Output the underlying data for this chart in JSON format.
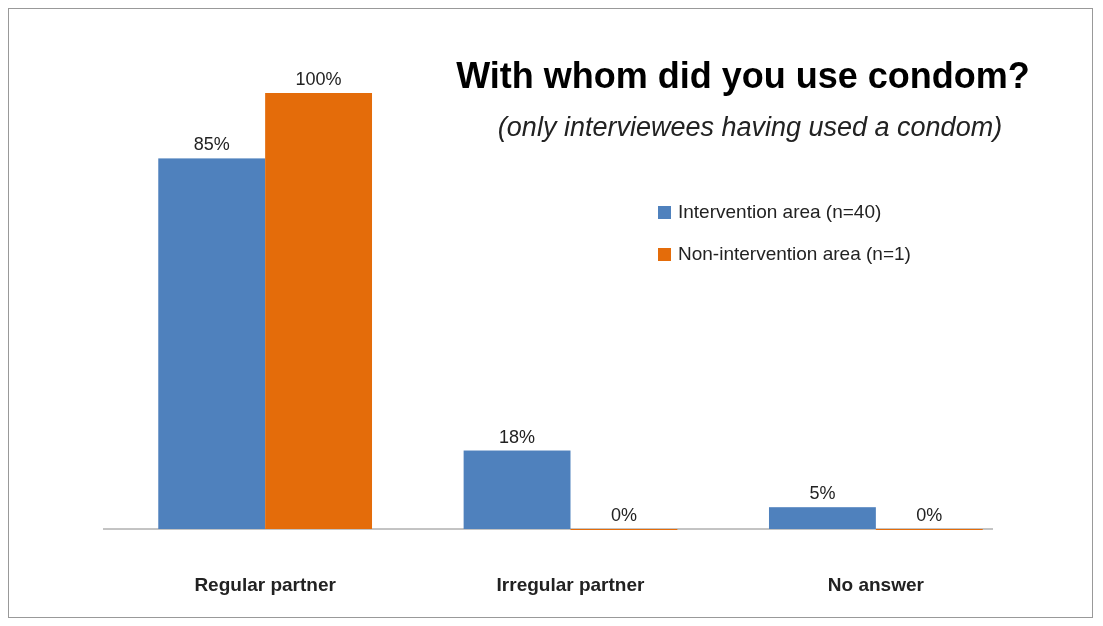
{
  "chart_data": {
    "type": "bar",
    "title": "With whom did you use condom?",
    "subtitle": "(only interviewees having used a condom)",
    "categories": [
      "Regular partner",
      "Irregular partner",
      "No answer"
    ],
    "series": [
      {
        "name": "Intervention area (n=40)",
        "color": "#4f81bd",
        "values": [
          85,
          18,
          5
        ],
        "value_labels": [
          "85%",
          "18%",
          "5%"
        ]
      },
      {
        "name": "Non-intervention area (n=1)",
        "color": "#e46c0a",
        "values": [
          100,
          0,
          0
        ],
        "value_labels": [
          "100%",
          "0%",
          "0%"
        ]
      }
    ],
    "legend": "right"
  }
}
